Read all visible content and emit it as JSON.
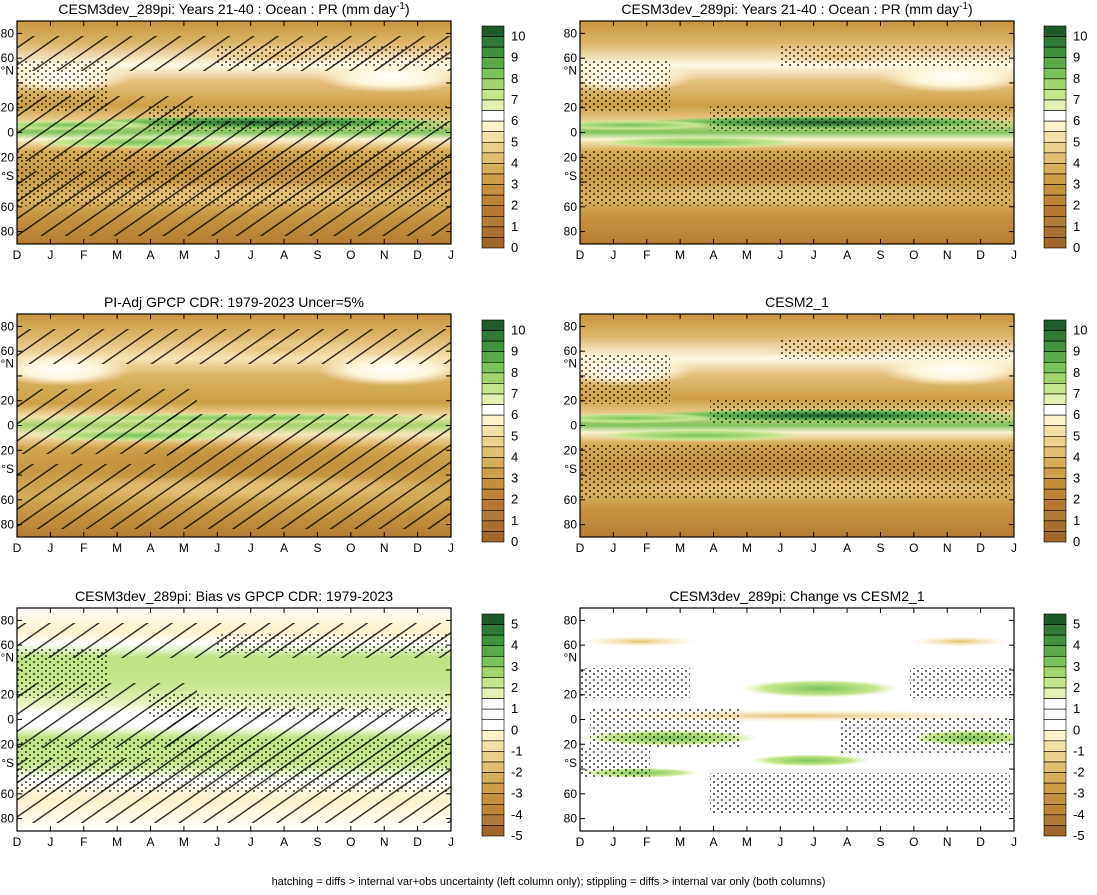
{
  "figure": {
    "footer": "hatching = diffs > internal var+obs uncertainty (left column only); stippling = diffs > internal var only (both columns)"
  },
  "axes": {
    "months": [
      "D",
      "J",
      "F",
      "M",
      "A",
      "M",
      "J",
      "J",
      "A",
      "S",
      "O",
      "N",
      "D",
      "J"
    ],
    "lat_ticks": [
      "80",
      "60",
      "°N",
      "40",
      "20",
      "0",
      "20",
      "°S",
      "40",
      "60",
      "80"
    ]
  },
  "colorbars": {
    "absolute": {
      "labels": [
        "10",
        "9",
        "8",
        "7",
        "6",
        "5",
        "4",
        "3",
        "2",
        "1",
        "0"
      ],
      "colors": [
        "#1f5a2c",
        "#2f7a36",
        "#3f913e",
        "#5aaa4a",
        "#7cc25a",
        "#a3d56e",
        "#c6e68c",
        "#e3f1b5",
        "#ffffff",
        "#fbf2cc",
        "#f3e2a8",
        "#ead08a",
        "#e1bf70",
        "#d8af59",
        "#cf9f48",
        "#c5903b",
        "#bd8434",
        "#b7792f",
        "#b07a38",
        "#a86f2e",
        "#9f6529"
      ]
    },
    "difference": {
      "labels": [
        "5",
        "4",
        "3",
        "2",
        "1",
        "0",
        "-1",
        "-2",
        "-3",
        "-4",
        "-5"
      ],
      "colors": [
        "#1f5a2c",
        "#2f7a36",
        "#3f913e",
        "#5aaa4a",
        "#7cc25a",
        "#a3d56e",
        "#c6e68c",
        "#e3f1b5",
        "#ffffff",
        "#ffffff",
        "#ffffff",
        "#fbf2cc",
        "#f3e2a8",
        "#ead08a",
        "#e1bf70",
        "#d8af59",
        "#cf9f48",
        "#c5903b",
        "#bd8434",
        "#b07a38",
        "#9f6529"
      ]
    }
  },
  "panels": [
    {
      "id": "p1",
      "title": "CESM3dev_289pi: Years 21-40 : Ocean : PR (mm day",
      "title_sup": "-1",
      "title_close": ")"
    },
    {
      "id": "p2",
      "title": "CESM3dev_289pi: Years 21-40 : Ocean : PR (mm day",
      "title_sup": "-1",
      "title_close": ")"
    },
    {
      "id": "p3",
      "title": "PI-Adj GPCP CDR: 1979-2023 Uncer=5%",
      "title_sup": "",
      "title_close": ""
    },
    {
      "id": "p4",
      "title": "CESM2_1",
      "title_sup": "",
      "title_close": ""
    },
    {
      "id": "p5",
      "title": "CESM3dev_289pi: Bias vs GPCP CDR: 1979-2023",
      "title_sup": "",
      "title_close": ""
    },
    {
      "id": "p6",
      "title": "CESM3dev_289pi: Change vs CESM2_1",
      "title_sup": "",
      "title_close": ""
    }
  ],
  "chart_data": [
    {
      "type": "heatmap",
      "title": "CESM3dev_289pi: Years 21-40 : Ocean : PR (mm day-1)",
      "x": [
        "D",
        "J",
        "F",
        "M",
        "A",
        "M",
        "J",
        "J",
        "A",
        "S",
        "O",
        "N",
        "D",
        "J"
      ],
      "y_ticks": [
        80,
        60,
        40,
        20,
        0,
        -20,
        -40,
        -60,
        -80
      ],
      "units": "mm day-1",
      "colorbar_range": [
        0,
        10
      ],
      "overlay": "hatching + stippling",
      "features": {
        "itcz_lat": 7,
        "itcz_peak_mm_day": 10,
        "storm_track_lats": [
          45,
          -45
        ],
        "dry_subtropics_mm_day": 1
      }
    },
    {
      "type": "heatmap",
      "title": "CESM3dev_289pi: Years 21-40 : Ocean : PR (mm day-1)",
      "x": [
        "D",
        "J",
        "F",
        "M",
        "A",
        "M",
        "J",
        "J",
        "A",
        "S",
        "O",
        "N",
        "D",
        "J"
      ],
      "y_ticks": [
        80,
        60,
        40,
        20,
        0,
        -20,
        -40,
        -60,
        -80
      ],
      "units": "mm day-1",
      "colorbar_range": [
        0,
        10
      ],
      "overlay": "stippling",
      "features": {
        "itcz_lat": 7,
        "itcz_peak_mm_day": 10,
        "storm_track_lats": [
          45,
          -45
        ],
        "dry_subtropics_mm_day": 1
      }
    },
    {
      "type": "heatmap",
      "title": "PI-Adj GPCP CDR: 1979-2023 Uncer=5%",
      "x": [
        "D",
        "J",
        "F",
        "M",
        "A",
        "M",
        "J",
        "J",
        "A",
        "S",
        "O",
        "N",
        "D",
        "J"
      ],
      "y_ticks": [
        80,
        60,
        40,
        20,
        0,
        -20,
        -40,
        -60,
        -80
      ],
      "units": "mm day-1",
      "colorbar_range": [
        0,
        10
      ],
      "overlay": "hatching",
      "features": {
        "itcz_lat": 6,
        "itcz_peak_mm_day": 7,
        "storm_track_lats": [
          45,
          -45
        ],
        "dry_subtropics_mm_day": 1
      }
    },
    {
      "type": "heatmap",
      "title": "CESM2_1",
      "x": [
        "D",
        "J",
        "F",
        "M",
        "A",
        "M",
        "J",
        "J",
        "A",
        "S",
        "O",
        "N",
        "D",
        "J"
      ],
      "y_ticks": [
        80,
        60,
        40,
        20,
        0,
        -20,
        -40,
        -60,
        -80
      ],
      "units": "mm day-1",
      "colorbar_range": [
        0,
        10
      ],
      "overlay": "stippling",
      "features": {
        "itcz_lat": 9,
        "itcz_peak_mm_day": 10,
        "storm_track_lats": [
          45,
          -45
        ],
        "dry_subtropics_mm_day": 1
      }
    },
    {
      "type": "heatmap",
      "title": "CESM3dev_289pi: Bias vs GPCP CDR: 1979-2023",
      "x": [
        "D",
        "J",
        "F",
        "M",
        "A",
        "M",
        "J",
        "J",
        "A",
        "S",
        "O",
        "N",
        "D",
        "J"
      ],
      "y_ticks": [
        80,
        60,
        40,
        20,
        0,
        -20,
        -40,
        -60,
        -80
      ],
      "units": "mm day-1",
      "colorbar_range": [
        -5,
        5
      ],
      "overlay": "hatching + stippling",
      "features": {
        "positive_bias_bands": [
          [
            8,
            40
          ],
          [
            -8,
            -35
          ]
        ],
        "bias_mm_day": 1.5
      }
    },
    {
      "type": "heatmap",
      "title": "CESM3dev_289pi: Change vs CESM2_1",
      "x": [
        "D",
        "J",
        "F",
        "M",
        "A",
        "M",
        "J",
        "J",
        "A",
        "S",
        "O",
        "N",
        "D",
        "J"
      ],
      "y_ticks": [
        80,
        60,
        40,
        20,
        0,
        -20,
        -40,
        -60,
        -80
      ],
      "units": "mm day-1",
      "colorbar_range": [
        -5,
        5
      ],
      "overlay": "stippling",
      "features": {
        "positive_change_bands": [
          [
            20,
            30
          ],
          [
            -8,
            -20
          ],
          [
            -30,
            -40
          ]
        ],
        "negative_change_bands": [
          [
            0,
            8
          ],
          [
            60,
            65
          ]
        ]
      }
    }
  ]
}
